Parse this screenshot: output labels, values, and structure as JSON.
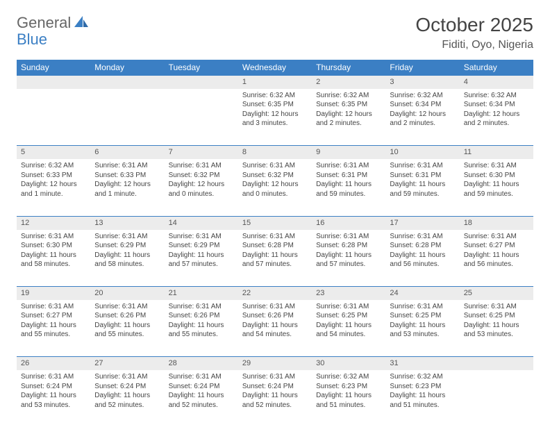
{
  "logo": {
    "part1": "General",
    "part2": "Blue"
  },
  "title": "October 2025",
  "location": "Fiditi, Oyo, Nigeria",
  "colors": {
    "header_bg": "#3b7fc4",
    "header_fg": "#ffffff",
    "daynum_bg": "#ececec",
    "daynum_border": "#3b7fc4",
    "text": "#444444",
    "logo_gray": "#666666",
    "logo_blue": "#3b7fc4",
    "page_bg": "#ffffff"
  },
  "typography": {
    "title_fontsize": 28,
    "location_fontsize": 16,
    "header_fontsize": 12,
    "daynum_fontsize": 11,
    "body_fontsize": 10,
    "font_family": "Arial"
  },
  "weekdays": [
    "Sunday",
    "Monday",
    "Tuesday",
    "Wednesday",
    "Thursday",
    "Friday",
    "Saturday"
  ],
  "weeks": [
    [
      {
        "n": "",
        "sr": "",
        "ss": "",
        "dl": ""
      },
      {
        "n": "",
        "sr": "",
        "ss": "",
        "dl": ""
      },
      {
        "n": "",
        "sr": "",
        "ss": "",
        "dl": ""
      },
      {
        "n": "1",
        "sr": "Sunrise: 6:32 AM",
        "ss": "Sunset: 6:35 PM",
        "dl": "Daylight: 12 hours and 3 minutes."
      },
      {
        "n": "2",
        "sr": "Sunrise: 6:32 AM",
        "ss": "Sunset: 6:35 PM",
        "dl": "Daylight: 12 hours and 2 minutes."
      },
      {
        "n": "3",
        "sr": "Sunrise: 6:32 AM",
        "ss": "Sunset: 6:34 PM",
        "dl": "Daylight: 12 hours and 2 minutes."
      },
      {
        "n": "4",
        "sr": "Sunrise: 6:32 AM",
        "ss": "Sunset: 6:34 PM",
        "dl": "Daylight: 12 hours and 2 minutes."
      }
    ],
    [
      {
        "n": "5",
        "sr": "Sunrise: 6:32 AM",
        "ss": "Sunset: 6:33 PM",
        "dl": "Daylight: 12 hours and 1 minute."
      },
      {
        "n": "6",
        "sr": "Sunrise: 6:31 AM",
        "ss": "Sunset: 6:33 PM",
        "dl": "Daylight: 12 hours and 1 minute."
      },
      {
        "n": "7",
        "sr": "Sunrise: 6:31 AM",
        "ss": "Sunset: 6:32 PM",
        "dl": "Daylight: 12 hours and 0 minutes."
      },
      {
        "n": "8",
        "sr": "Sunrise: 6:31 AM",
        "ss": "Sunset: 6:32 PM",
        "dl": "Daylight: 12 hours and 0 minutes."
      },
      {
        "n": "9",
        "sr": "Sunrise: 6:31 AM",
        "ss": "Sunset: 6:31 PM",
        "dl": "Daylight: 11 hours and 59 minutes."
      },
      {
        "n": "10",
        "sr": "Sunrise: 6:31 AM",
        "ss": "Sunset: 6:31 PM",
        "dl": "Daylight: 11 hours and 59 minutes."
      },
      {
        "n": "11",
        "sr": "Sunrise: 6:31 AM",
        "ss": "Sunset: 6:30 PM",
        "dl": "Daylight: 11 hours and 59 minutes."
      }
    ],
    [
      {
        "n": "12",
        "sr": "Sunrise: 6:31 AM",
        "ss": "Sunset: 6:30 PM",
        "dl": "Daylight: 11 hours and 58 minutes."
      },
      {
        "n": "13",
        "sr": "Sunrise: 6:31 AM",
        "ss": "Sunset: 6:29 PM",
        "dl": "Daylight: 11 hours and 58 minutes."
      },
      {
        "n": "14",
        "sr": "Sunrise: 6:31 AM",
        "ss": "Sunset: 6:29 PM",
        "dl": "Daylight: 11 hours and 57 minutes."
      },
      {
        "n": "15",
        "sr": "Sunrise: 6:31 AM",
        "ss": "Sunset: 6:28 PM",
        "dl": "Daylight: 11 hours and 57 minutes."
      },
      {
        "n": "16",
        "sr": "Sunrise: 6:31 AM",
        "ss": "Sunset: 6:28 PM",
        "dl": "Daylight: 11 hours and 57 minutes."
      },
      {
        "n": "17",
        "sr": "Sunrise: 6:31 AM",
        "ss": "Sunset: 6:28 PM",
        "dl": "Daylight: 11 hours and 56 minutes."
      },
      {
        "n": "18",
        "sr": "Sunrise: 6:31 AM",
        "ss": "Sunset: 6:27 PM",
        "dl": "Daylight: 11 hours and 56 minutes."
      }
    ],
    [
      {
        "n": "19",
        "sr": "Sunrise: 6:31 AM",
        "ss": "Sunset: 6:27 PM",
        "dl": "Daylight: 11 hours and 55 minutes."
      },
      {
        "n": "20",
        "sr": "Sunrise: 6:31 AM",
        "ss": "Sunset: 6:26 PM",
        "dl": "Daylight: 11 hours and 55 minutes."
      },
      {
        "n": "21",
        "sr": "Sunrise: 6:31 AM",
        "ss": "Sunset: 6:26 PM",
        "dl": "Daylight: 11 hours and 55 minutes."
      },
      {
        "n": "22",
        "sr": "Sunrise: 6:31 AM",
        "ss": "Sunset: 6:26 PM",
        "dl": "Daylight: 11 hours and 54 minutes."
      },
      {
        "n": "23",
        "sr": "Sunrise: 6:31 AM",
        "ss": "Sunset: 6:25 PM",
        "dl": "Daylight: 11 hours and 54 minutes."
      },
      {
        "n": "24",
        "sr": "Sunrise: 6:31 AM",
        "ss": "Sunset: 6:25 PM",
        "dl": "Daylight: 11 hours and 53 minutes."
      },
      {
        "n": "25",
        "sr": "Sunrise: 6:31 AM",
        "ss": "Sunset: 6:25 PM",
        "dl": "Daylight: 11 hours and 53 minutes."
      }
    ],
    [
      {
        "n": "26",
        "sr": "Sunrise: 6:31 AM",
        "ss": "Sunset: 6:24 PM",
        "dl": "Daylight: 11 hours and 53 minutes."
      },
      {
        "n": "27",
        "sr": "Sunrise: 6:31 AM",
        "ss": "Sunset: 6:24 PM",
        "dl": "Daylight: 11 hours and 52 minutes."
      },
      {
        "n": "28",
        "sr": "Sunrise: 6:31 AM",
        "ss": "Sunset: 6:24 PM",
        "dl": "Daylight: 11 hours and 52 minutes."
      },
      {
        "n": "29",
        "sr": "Sunrise: 6:31 AM",
        "ss": "Sunset: 6:24 PM",
        "dl": "Daylight: 11 hours and 52 minutes."
      },
      {
        "n": "30",
        "sr": "Sunrise: 6:32 AM",
        "ss": "Sunset: 6:23 PM",
        "dl": "Daylight: 11 hours and 51 minutes."
      },
      {
        "n": "31",
        "sr": "Sunrise: 6:32 AM",
        "ss": "Sunset: 6:23 PM",
        "dl": "Daylight: 11 hours and 51 minutes."
      },
      {
        "n": "",
        "sr": "",
        "ss": "",
        "dl": ""
      }
    ]
  ]
}
